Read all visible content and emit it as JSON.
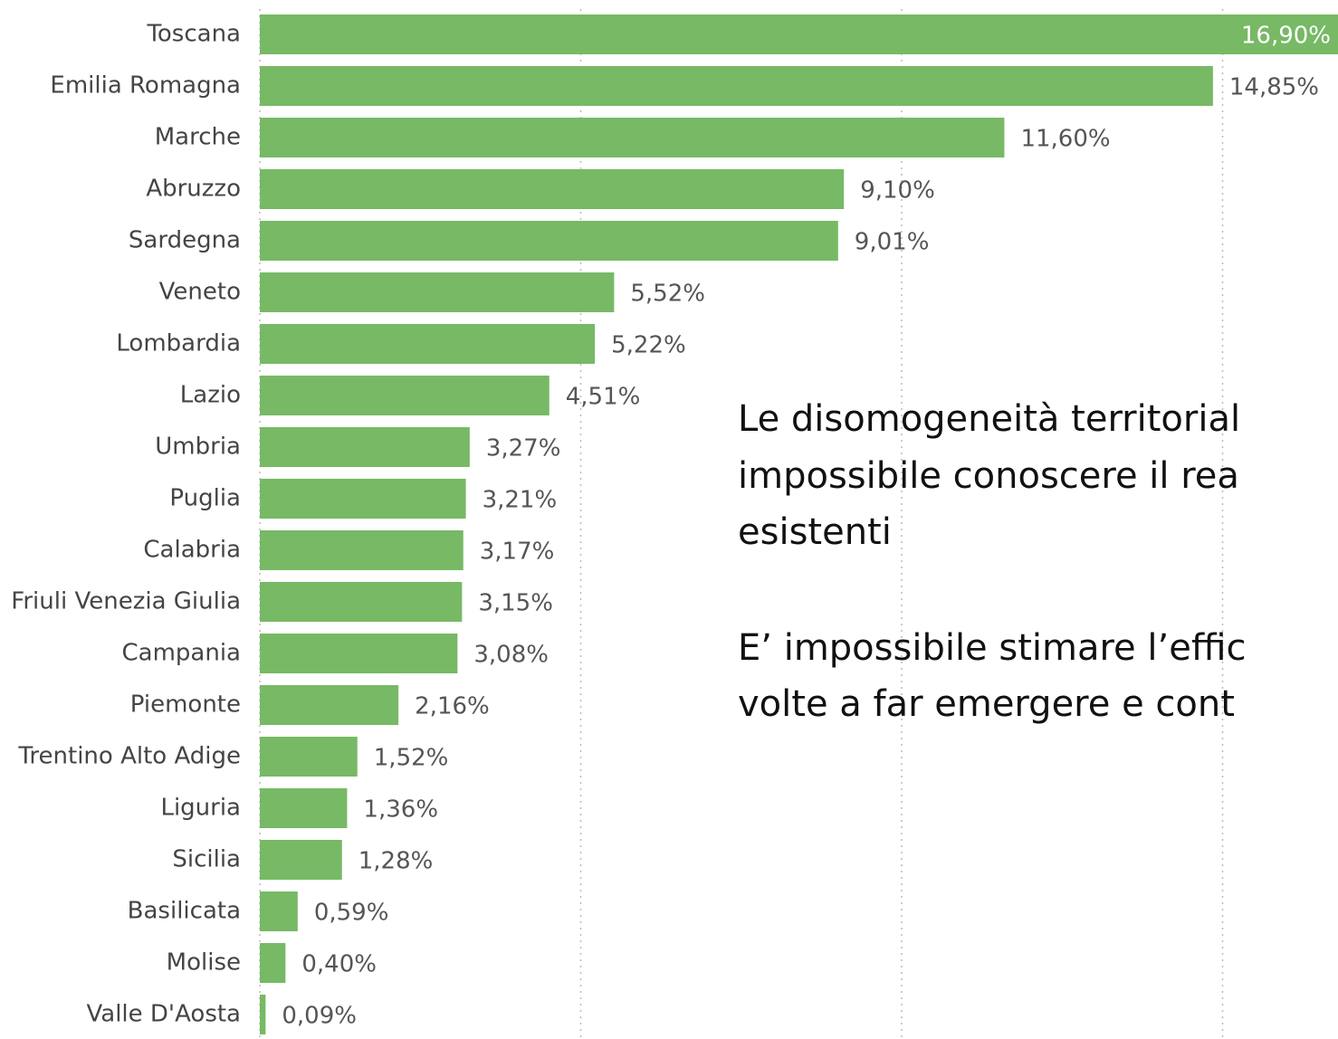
{
  "chart_data": {
    "type": "bar",
    "orientation": "horizontal",
    "categories": [
      "Toscana",
      "Emilia Romagna",
      "Marche",
      "Abruzzo",
      "Sardegna",
      "Veneto",
      "Lombardia",
      "Lazio",
      "Umbria",
      "Puglia",
      "Calabria",
      "Friuli Venezia Giulia",
      "Campania",
      "Piemonte",
      "Trentino Alto Adige",
      "Liguria",
      "Sicilia",
      "Basilicata",
      "Molise",
      "Valle D'Aosta"
    ],
    "values": [
      16.9,
      14.85,
      11.6,
      9.1,
      9.01,
      5.52,
      5.22,
      4.51,
      3.27,
      3.21,
      3.17,
      3.15,
      3.08,
      2.16,
      1.52,
      1.36,
      1.28,
      0.59,
      0.4,
      0.09
    ],
    "value_labels": [
      "16,90%",
      "14,85%",
      "11,60%",
      "9,10%",
      "9,01%",
      "5,52%",
      "5,22%",
      "4,51%",
      "3,27%",
      "3,21%",
      "3,17%",
      "3,15%",
      "3,08%",
      "2,16%",
      "1,52%",
      "1,36%",
      "1,28%",
      "0,59%",
      "0,40%",
      "0,09%"
    ],
    "color": "#77b965",
    "xlim": [
      0,
      17
    ],
    "xticks": [
      5,
      10,
      15
    ],
    "grid": true,
    "annotations": [
      "Le disomogeneità territorial",
      "impossibile conoscere il rea",
      "esistenti",
      "E’ impossibile stimare l’effic",
      "volte a far emergere e cont"
    ]
  }
}
